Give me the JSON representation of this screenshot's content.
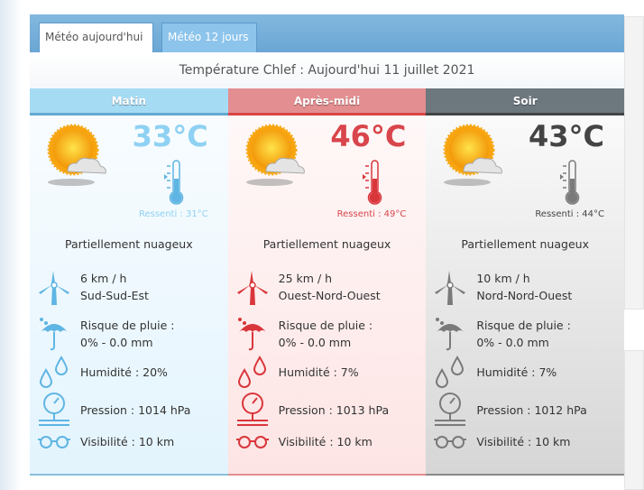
{
  "tabs": [
    {
      "label": "Météo aujourd'hui",
      "active": true
    },
    {
      "label": "Météo 12 jours",
      "active": false
    }
  ],
  "title": "Température Chlef : Aujourd'hui 11 juillet 2021",
  "columns": [
    {
      "period": "Matin",
      "temp": "33°C",
      "feels": "Ressenti : 31°C",
      "condition": "Partiellement nuageux",
      "wind_speed": "6 km / h",
      "wind_dir": "Sud-Sud-Est",
      "rain_label": "Risque de pluie :",
      "rain": "0% - 0.0 mm",
      "humidity": "Humidité : 20%",
      "pressure": "Pression : 1014 hPa",
      "visibility": "Visibilité : 10 km",
      "color": "#5fb5e3",
      "temp_color": "#8fd1f3"
    },
    {
      "period": "Après-midi",
      "temp": "46°C",
      "feels": "Ressenti : 49°C",
      "condition": "Partiellement nuageux",
      "wind_speed": "25 km / h",
      "wind_dir": "Ouest-Nord-Ouest",
      "rain_label": "Risque de pluie :",
      "rain": "0% - 0.0 mm",
      "humidity": "Humidité : 7%",
      "pressure": "Pression : 1013 hPa",
      "visibility": "Visibilité : 10 km",
      "color": "#d9363b",
      "temp_color": "#d8454b"
    },
    {
      "period": "Soir",
      "temp": "43°C",
      "feels": "Ressenti : 44°C",
      "condition": "Partiellement nuageux",
      "wind_speed": "10 km / h",
      "wind_dir": "Nord-Nord-Ouest",
      "rain_label": "Risque de pluie :",
      "rain": "0% - 0.0 mm",
      "humidity": "Humidité : 7%",
      "pressure": "Pression : 1012 hPa",
      "visibility": "Visibilité : 10 km",
      "color": "#7a7a7a",
      "temp_color": "#444444"
    }
  ]
}
